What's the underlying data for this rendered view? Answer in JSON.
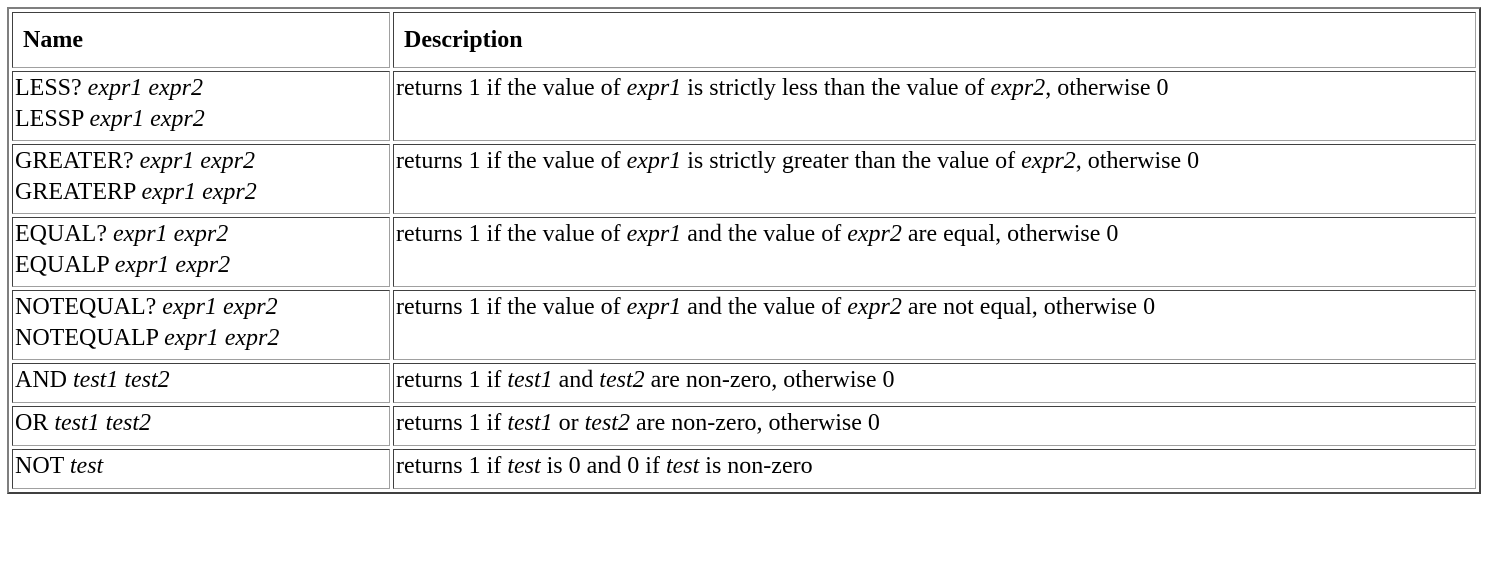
{
  "header": {
    "name": "Name",
    "description": "Description"
  },
  "rows": [
    {
      "name_lines": [
        {
          "cmd": "LESS?",
          "args": "expr1 expr2"
        },
        {
          "cmd": "LESSP",
          "args": "expr1 expr2"
        }
      ],
      "desc": [
        {
          "t": "returns 1 if the value of "
        },
        {
          "i": "expr1"
        },
        {
          "t": " is strictly less than the value of "
        },
        {
          "i": "expr2"
        },
        {
          "t": ", otherwise 0"
        }
      ]
    },
    {
      "name_lines": [
        {
          "cmd": "GREATER?",
          "args": "expr1 expr2"
        },
        {
          "cmd": "GREATERP",
          "args": "expr1 expr2"
        }
      ],
      "desc": [
        {
          "t": "returns 1 if the value of "
        },
        {
          "i": "expr1"
        },
        {
          "t": " is strictly greater than the value of "
        },
        {
          "i": "expr2"
        },
        {
          "t": ", otherwise 0"
        }
      ]
    },
    {
      "name_lines": [
        {
          "cmd": "EQUAL?",
          "args": "expr1 expr2"
        },
        {
          "cmd": "EQUALP",
          "args": "expr1 expr2"
        }
      ],
      "desc": [
        {
          "t": "returns 1 if the value of "
        },
        {
          "i": "expr1"
        },
        {
          "t": " and the value of "
        },
        {
          "i": "expr2"
        },
        {
          "t": " are equal, otherwise 0"
        }
      ]
    },
    {
      "name_lines": [
        {
          "cmd": "NOTEQUAL?",
          "args": "expr1 expr2"
        },
        {
          "cmd": "NOTEQUALP",
          "args": "expr1 expr2"
        }
      ],
      "desc": [
        {
          "t": "returns 1 if the value of "
        },
        {
          "i": "expr1"
        },
        {
          "t": " and the value of "
        },
        {
          "i": "expr2"
        },
        {
          "t": " are not equal, otherwise 0"
        }
      ]
    },
    {
      "name_lines": [
        {
          "cmd": "AND",
          "args": "test1 test2"
        }
      ],
      "desc": [
        {
          "t": "returns 1 if "
        },
        {
          "i": "test1"
        },
        {
          "t": " and "
        },
        {
          "i": "test2"
        },
        {
          "t": " are non-zero, otherwise 0"
        }
      ]
    },
    {
      "name_lines": [
        {
          "cmd": "OR",
          "args": "test1 test2"
        }
      ],
      "desc": [
        {
          "t": "returns 1 if "
        },
        {
          "i": "test1"
        },
        {
          "t": " or "
        },
        {
          "i": "test2"
        },
        {
          "t": " are non-zero, otherwise 0"
        }
      ]
    },
    {
      "name_lines": [
        {
          "cmd": "NOT",
          "args": "test"
        }
      ],
      "desc": [
        {
          "t": "returns 1 if "
        },
        {
          "i": "test"
        },
        {
          "t": " is 0 and 0 if "
        },
        {
          "i": "test"
        },
        {
          "t": " is non-zero"
        }
      ]
    }
  ]
}
